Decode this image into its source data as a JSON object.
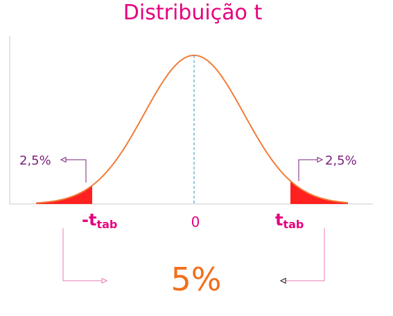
{
  "title": "Distribuição t",
  "labels": {
    "left_tail_area": "2,5%",
    "right_tail_area": "2,5%",
    "left_critical_main": "-t",
    "left_critical_sub": "tab",
    "center_value": "0",
    "right_critical_main": "t",
    "right_critical_sub": "tab",
    "total_area": "5%"
  },
  "colors": {
    "title": "#e6007e",
    "curve": "#f07c38",
    "tail_fill": "#ff2020",
    "mean_line": "#4aa3c8",
    "axis": "#c8c8c8",
    "tail_callout": "#7a1f7a",
    "critical_label": "#e6007e",
    "total_callout": "#e878b4",
    "total_value": "#f26f1a"
  },
  "distribution": {
    "type": "t-distribution",
    "critical_value_side": "two-tailed",
    "shaded_tails": [
      "left",
      "right"
    ]
  }
}
